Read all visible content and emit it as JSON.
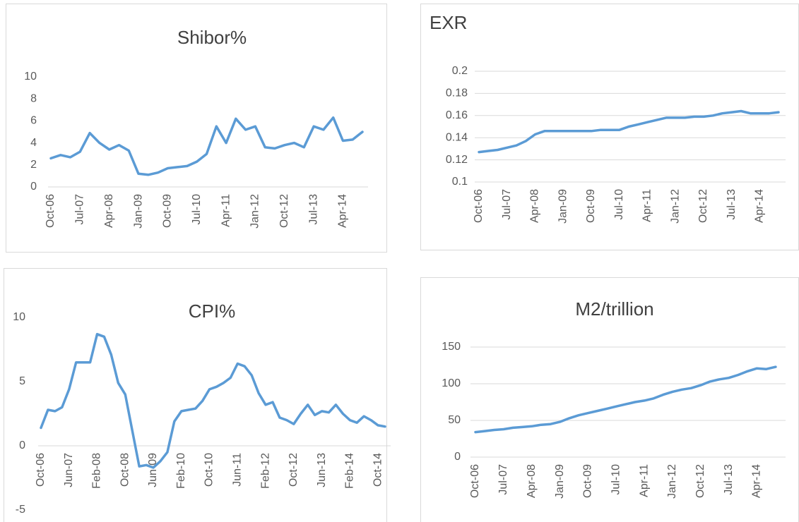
{
  "chart_data": [
    {
      "type": "line",
      "title": "Shibor%",
      "color": "#5b9bd5",
      "grid": false,
      "categories": [
        "Oct-06",
        null,
        null,
        "Jul-07",
        null,
        null,
        "Apr-08",
        null,
        null,
        "Jan-09",
        null,
        null,
        "Oct-09",
        null,
        null,
        "Jul-10",
        null,
        null,
        "Apr-11",
        null,
        null,
        "Jan-12",
        null,
        null,
        "Oct-12",
        null,
        null,
        "Jul-13",
        null,
        null,
        "Apr-14",
        null,
        null
      ],
      "values": [
        2.6,
        2.9,
        2.7,
        3.2,
        4.9,
        4.0,
        3.4,
        3.8,
        3.3,
        1.2,
        1.1,
        1.3,
        1.7,
        1.8,
        1.9,
        2.3,
        3.0,
        5.5,
        4.0,
        6.2,
        5.2,
        5.5,
        3.6,
        3.5,
        3.8,
        4.0,
        3.6,
        5.5,
        5.2,
        6.3,
        4.2,
        4.3,
        5.0
      ],
      "ylim": [
        0,
        10
      ],
      "yticks": [
        0,
        2,
        4,
        6,
        8,
        10
      ]
    },
    {
      "type": "line",
      "title": "EXR",
      "color": "#5b9bd5",
      "grid": true,
      "categories": [
        "Oct-06",
        null,
        null,
        "Jul-07",
        null,
        null,
        "Apr-08",
        null,
        null,
        "Jan-09",
        null,
        null,
        "Oct-09",
        null,
        null,
        "Jul-10",
        null,
        null,
        "Apr-11",
        null,
        null,
        "Jan-12",
        null,
        null,
        "Oct-12",
        null,
        null,
        "Jul-13",
        null,
        null,
        "Apr-14",
        null,
        null
      ],
      "values": [
        0.127,
        0.128,
        0.129,
        0.131,
        0.133,
        0.137,
        0.143,
        0.146,
        0.146,
        0.146,
        0.146,
        0.146,
        0.146,
        0.147,
        0.147,
        0.147,
        0.15,
        0.152,
        0.154,
        0.156,
        0.158,
        0.158,
        0.158,
        0.159,
        0.159,
        0.16,
        0.162,
        0.163,
        0.164,
        0.162,
        0.162,
        0.162,
        0.163
      ],
      "ylim": [
        0.1,
        0.2
      ],
      "yticks": [
        0.1,
        0.12,
        0.14,
        0.16,
        0.18,
        0.2
      ]
    },
    {
      "type": "line",
      "title": "CPI%",
      "color": "#5b9bd5",
      "grid": false,
      "categories": [
        "Oct-06",
        null,
        null,
        null,
        "Jun-07",
        null,
        null,
        null,
        "Feb-08",
        null,
        null,
        null,
        "Oct-08",
        null,
        null,
        null,
        "Jun-09",
        null,
        null,
        null,
        "Feb-10",
        null,
        null,
        null,
        "Oct-10",
        null,
        null,
        null,
        "Jun-11",
        null,
        null,
        null,
        "Feb-12",
        null,
        null,
        null,
        "Oct-12",
        null,
        null,
        null,
        "Jun-13",
        null,
        null,
        null,
        "Feb-14",
        null,
        null,
        null,
        "Oct-14",
        null
      ],
      "values": [
        1.4,
        2.8,
        2.7,
        3.0,
        4.4,
        6.5,
        6.5,
        6.5,
        8.7,
        8.5,
        7.1,
        4.9,
        4.0,
        1.2,
        -1.6,
        -1.5,
        -1.7,
        -1.2,
        -0.5,
        1.9,
        2.7,
        2.8,
        2.9,
        3.5,
        4.4,
        4.6,
        4.9,
        5.3,
        6.4,
        6.2,
        5.5,
        4.1,
        3.2,
        3.4,
        2.2,
        2.0,
        1.7,
        2.5,
        3.2,
        2.4,
        2.7,
        2.6,
        3.2,
        2.5,
        2.0,
        1.8,
        2.3,
        2.0,
        1.6,
        1.5
      ],
      "ylim": [
        -5,
        10
      ],
      "yticks": [
        -5,
        0,
        5,
        10
      ]
    },
    {
      "type": "line",
      "title": "M2/trillion",
      "color": "#5b9bd5",
      "grid": true,
      "categories": [
        "Oct-06",
        null,
        null,
        "Jul-07",
        null,
        null,
        "Apr-08",
        null,
        null,
        "Jan-09",
        null,
        null,
        "Oct-09",
        null,
        null,
        "Jul-10",
        null,
        null,
        "Apr-11",
        null,
        null,
        "Jan-12",
        null,
        null,
        "Oct-12",
        null,
        null,
        "Jul-13",
        null,
        null,
        "Apr-14",
        null,
        null
      ],
      "values": [
        34,
        35.5,
        37,
        38,
        40,
        41,
        42,
        44,
        45,
        48,
        53,
        57,
        60,
        63,
        66,
        69,
        72,
        75,
        77,
        80,
        85,
        89,
        92,
        94,
        98,
        103,
        106,
        108,
        112,
        117,
        121,
        120,
        123
      ],
      "ylim": [
        0,
        150
      ],
      "yticks": [
        0,
        50,
        100,
        150
      ]
    }
  ]
}
